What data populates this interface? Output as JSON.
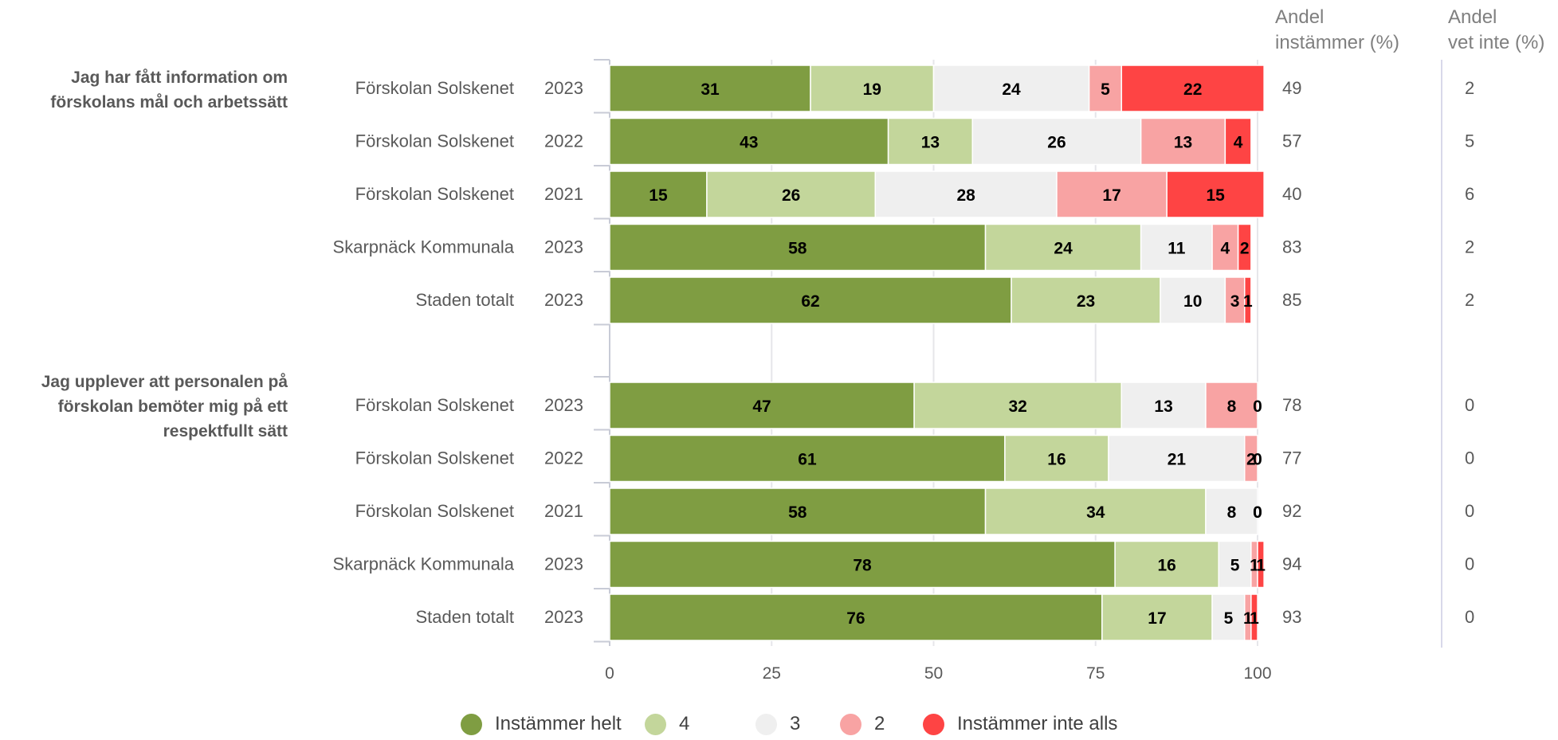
{
  "headers": {
    "andel_instammer": "Andel instämmer (%)",
    "andel_instammer_l1": "Andel",
    "andel_instammer_l2": "instämmer (%)",
    "andel_vet_inte_l1": "Andel",
    "andel_vet_inte_l2": "vet inte (%)"
  },
  "legend": [
    {
      "label": "Instämmer helt",
      "color": "#7f9d42"
    },
    {
      "label": "4",
      "color": "#c3d69b"
    },
    {
      "label": "3",
      "color": "#efefef"
    },
    {
      "label": "2",
      "color": "#f8a3a3"
    },
    {
      "label": "Instämmer inte alls",
      "color": "#fe4444"
    }
  ],
  "chart_data": {
    "type": "bar",
    "orientation": "horizontal",
    "stacked": true,
    "xlim": [
      0,
      100
    ],
    "xticks": [
      0,
      25,
      50,
      75,
      100
    ],
    "grid": true,
    "legend_position": "bottom",
    "series_names": [
      "Instämmer helt",
      "4",
      "3",
      "2",
      "Instämmer inte alls"
    ],
    "groups": [
      {
        "question_lines": [
          "Jag har fått information om",
          "förskolans mål och arbetssätt"
        ],
        "rows": [
          {
            "unit": "Förskolan Solskenet",
            "year": "2023",
            "values": [
              31,
              19,
              24,
              5,
              22
            ],
            "andel_instammer": 49,
            "andel_vet_inte": 2
          },
          {
            "unit": "Förskolan Solskenet",
            "year": "2022",
            "values": [
              43,
              13,
              26,
              13,
              4
            ],
            "andel_instammer": 57,
            "andel_vet_inte": 5
          },
          {
            "unit": "Förskolan Solskenet",
            "year": "2021",
            "values": [
              15,
              26,
              28,
              17,
              15
            ],
            "andel_instammer": 40,
            "andel_vet_inte": 6
          },
          {
            "unit": "Skarpnäck Kommunala",
            "year": "2023",
            "values": [
              58,
              24,
              11,
              4,
              2
            ],
            "andel_instammer": 83,
            "andel_vet_inte": 2
          },
          {
            "unit": "Staden totalt",
            "year": "2023",
            "values": [
              62,
              23,
              10,
              3,
              1
            ],
            "andel_instammer": 85,
            "andel_vet_inte": 2
          }
        ]
      },
      {
        "question_lines": [
          "Jag upplever att personalen på",
          "förskolan bemöter mig på ett",
          "respektfullt sätt"
        ],
        "rows": [
          {
            "unit": "Förskolan Solskenet",
            "year": "2023",
            "values": [
              47,
              32,
              13,
              8,
              0
            ],
            "andel_instammer": 78,
            "andel_vet_inte": 0
          },
          {
            "unit": "Förskolan Solskenet",
            "year": "2022",
            "values": [
              61,
              16,
              21,
              2,
              0
            ],
            "andel_instammer": 77,
            "andel_vet_inte": 0
          },
          {
            "unit": "Förskolan Solskenet",
            "year": "2021",
            "values": [
              58,
              34,
              8,
              0,
              0
            ],
            "andel_instammer": 92,
            "andel_vet_inte": 0
          },
          {
            "unit": "Skarpnäck Kommunala",
            "year": "2023",
            "values": [
              78,
              16,
              5,
              1,
              1
            ],
            "andel_instammer": 94,
            "andel_vet_inte": 0
          },
          {
            "unit": "Staden totalt",
            "year": "2023",
            "values": [
              76,
              17,
              5,
              1,
              1
            ],
            "andel_instammer": 93,
            "andel_vet_inte": 0
          }
        ]
      }
    ]
  }
}
